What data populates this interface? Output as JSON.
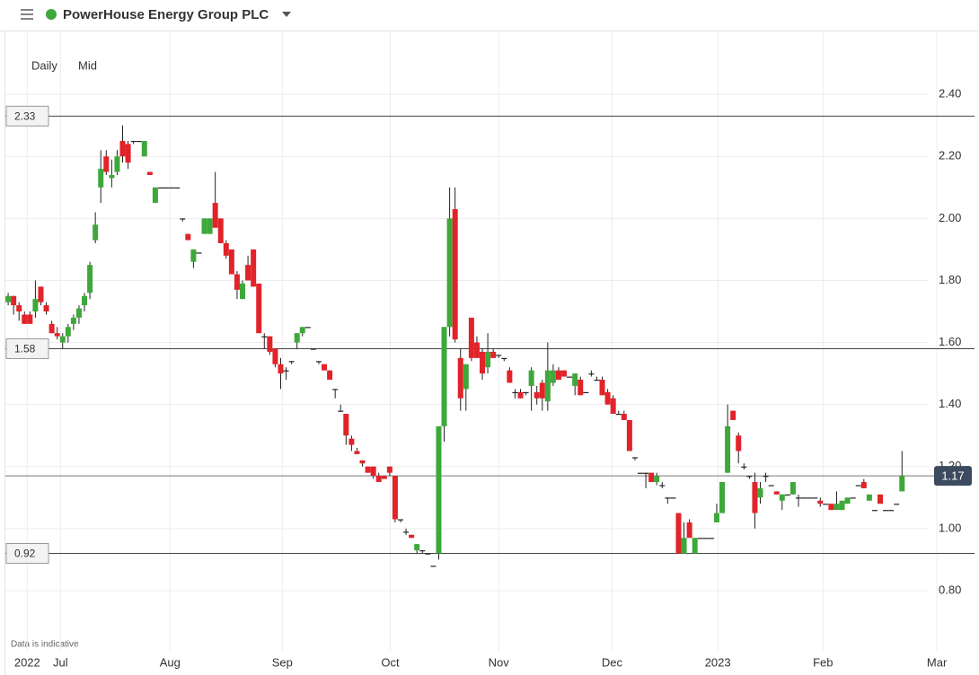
{
  "header": {
    "title": "PowerHouse Energy Group PLC"
  },
  "controls": [
    "Daily",
    "Mid"
  ],
  "note": "Data is indicative",
  "chart_data": {
    "type": "candlestick",
    "up_color": "#3ea83b",
    "down_color": "#e1232a",
    "grid": true,
    "xlim": [
      -1,
      177.3
    ],
    "ylim": [
      0.606,
      2.603
    ],
    "yticks": [
      {
        "value": 0.8,
        "label": "0.80"
      },
      {
        "value": 1.0,
        "label": "1.00"
      },
      {
        "value": 1.2,
        "label": "1.20"
      },
      {
        "value": 1.4,
        "label": "1.40"
      },
      {
        "value": 1.6,
        "label": "1.60"
      },
      {
        "value": 1.8,
        "label": "1.80"
      },
      {
        "value": 2.0,
        "label": "2.00"
      },
      {
        "value": 2.2,
        "label": "2.20"
      },
      {
        "value": 2.4,
        "label": "2.40"
      }
    ],
    "xticks": [
      {
        "value": 3.5,
        "label": "2022"
      },
      {
        "value": 9.6,
        "label": "Jul"
      },
      {
        "value": 29.7,
        "label": "Aug"
      },
      {
        "value": 50.3,
        "label": "Sep"
      },
      {
        "value": 70.1,
        "label": "Oct"
      },
      {
        "value": 90,
        "label": "Nov"
      },
      {
        "value": 110.8,
        "label": "Dec"
      },
      {
        "value": 130.2,
        "label": "2023"
      },
      {
        "value": 149.5,
        "label": "Feb"
      },
      {
        "value": 170.4,
        "label": "Mar"
      }
    ],
    "reference_lines": [
      2.33,
      1.58,
      0.92
    ],
    "last_price": 1.17,
    "candles": [
      [
        1.73,
        1.76,
        1.72,
        1.75
      ],
      [
        1.75,
        1.75,
        1.69,
        1.72
      ],
      [
        1.72,
        1.73,
        1.67,
        1.7
      ],
      [
        1.69,
        1.7,
        1.66,
        1.66
      ],
      [
        1.69,
        1.7,
        1.66,
        1.66
      ],
      [
        1.7,
        1.8,
        1.68,
        1.74
      ],
      [
        1.78,
        1.78,
        1.72,
        1.73
      ],
      [
        1.72,
        1.73,
        1.69,
        1.7
      ],
      [
        1.66,
        1.67,
        1.63,
        1.63
      ],
      [
        1.63,
        1.65,
        1.61,
        1.62
      ],
      [
        1.6,
        1.63,
        1.58,
        1.62
      ],
      [
        1.62,
        1.66,
        1.6,
        1.65
      ],
      [
        1.66,
        1.69,
        1.64,
        1.68
      ],
      [
        1.68,
        1.72,
        1.66,
        1.71
      ],
      [
        1.72,
        1.76,
        1.7,
        1.75
      ],
      [
        1.76,
        1.86,
        1.74,
        1.85
      ],
      [
        1.93,
        2.02,
        1.92,
        1.98
      ],
      [
        2.1,
        2.22,
        2.05,
        2.16
      ],
      [
        2.2,
        2.22,
        2.14,
        2.15
      ],
      [
        2.13,
        2.19,
        2.1,
        2.14
      ],
      [
        2.15,
        2.22,
        2.14,
        2.2
      ],
      [
        2.25,
        2.3,
        2.18,
        2.2
      ],
      [
        2.24,
        2.25,
        2.16,
        2.18
      ],
      [
        2.25,
        2.25,
        2.24,
        2.25
      ],
      [
        2.25,
        2.25,
        2.25,
        2.25
      ],
      [
        2.2,
        2.25,
        2.2,
        2.25
      ],
      [
        2.15,
        2.15,
        2.14,
        2.14
      ],
      [
        2.05,
        2.1,
        2.05,
        2.1
      ],
      [
        2.1,
        2.1,
        2.1,
        2.1
      ],
      [
        2.1,
        2.1,
        2.1,
        2.1
      ],
      [
        2.1,
        2.1,
        2.1,
        2.1
      ],
      [
        2.1,
        2.1,
        2.1,
        2.1
      ],
      [
        2.0,
        2.0,
        1.99,
        2.0
      ],
      [
        1.95,
        1.95,
        1.93,
        1.93
      ],
      [
        1.86,
        1.9,
        1.84,
        1.9
      ],
      [
        1.89,
        1.89,
        1.89,
        1.89
      ],
      [
        1.95,
        2.0,
        1.95,
        2.0
      ],
      [
        1.95,
        2.0,
        1.95,
        2.0
      ],
      [
        2.05,
        2.15,
        1.97,
        1.97
      ],
      [
        2.0,
        2.0,
        1.92,
        1.92
      ],
      [
        1.92,
        1.93,
        1.87,
        1.88
      ],
      [
        1.9,
        1.9,
        1.82,
        1.82
      ],
      [
        1.82,
        1.83,
        1.74,
        1.77
      ],
      [
        1.74,
        1.8,
        1.74,
        1.79
      ],
      [
        1.85,
        1.88,
        1.8,
        1.8
      ],
      [
        1.9,
        1.9,
        1.78,
        1.78
      ],
      [
        1.79,
        1.79,
        1.63,
        1.63
      ],
      [
        1.62,
        1.63,
        1.58,
        1.62
      ],
      [
        1.62,
        1.62,
        1.56,
        1.57
      ],
      [
        1.58,
        1.58,
        1.52,
        1.53
      ],
      [
        1.53,
        1.55,
        1.45,
        1.5
      ],
      [
        1.51,
        1.52,
        1.48,
        1.51
      ],
      [
        1.54,
        1.54,
        1.53,
        1.54
      ],
      [
        1.6,
        1.63,
        1.58,
        1.63
      ],
      [
        1.63,
        1.65,
        1.62,
        1.65
      ],
      [
        1.65,
        1.65,
        1.65,
        1.65
      ],
      [
        1.58,
        1.58,
        1.58,
        1.58
      ],
      [
        1.54,
        1.54,
        1.53,
        1.54
      ],
      [
        1.53,
        1.53,
        1.51,
        1.51
      ],
      [
        1.51,
        1.51,
        1.48,
        1.48
      ],
      [
        1.45,
        1.45,
        1.42,
        1.45
      ],
      [
        1.38,
        1.4,
        1.38,
        1.38
      ],
      [
        1.37,
        1.37,
        1.27,
        1.3
      ],
      [
        1.29,
        1.3,
        1.25,
        1.27
      ],
      [
        1.25,
        1.26,
        1.24,
        1.24
      ],
      [
        1.22,
        1.22,
        1.2,
        1.21
      ],
      [
        1.2,
        1.2,
        1.18,
        1.18
      ],
      [
        1.2,
        1.2,
        1.16,
        1.17
      ],
      [
        1.17,
        1.18,
        1.15,
        1.15
      ],
      [
        1.17,
        1.17,
        1.16,
        1.16
      ],
      [
        1.2,
        1.2,
        1.17,
        1.18
      ],
      [
        1.17,
        1.17,
        1.02,
        1.03
      ],
      [
        1.03,
        1.03,
        1.02,
        1.03
      ],
      [
        0.99,
        1.0,
        0.98,
        0.99
      ],
      [
        0.98,
        0.98,
        0.97,
        0.97
      ],
      [
        0.93,
        0.95,
        0.92,
        0.95
      ],
      [
        0.93,
        0.93,
        0.92,
        0.93
      ],
      [
        0.92,
        0.92,
        0.92,
        0.92
      ],
      [
        0.88,
        0.88,
        0.88,
        0.88
      ],
      [
        0.92,
        1.33,
        0.9,
        1.33
      ],
      [
        1.33,
        1.65,
        1.28,
        1.65
      ],
      [
        1.65,
        2.1,
        1.62,
        2.0
      ],
      [
        2.03,
        2.1,
        1.6,
        1.61
      ],
      [
        1.55,
        1.58,
        1.38,
        1.42
      ],
      [
        1.45,
        1.53,
        1.38,
        1.53
      ],
      [
        1.68,
        1.68,
        1.54,
        1.55
      ],
      [
        1.6,
        1.62,
        1.55,
        1.55
      ],
      [
        1.57,
        1.58,
        1.48,
        1.5
      ],
      [
        1.52,
        1.63,
        1.5,
        1.57
      ],
      [
        1.57,
        1.58,
        1.55,
        1.55
      ],
      [
        1.56,
        1.56,
        1.55,
        1.56
      ],
      [
        1.55,
        1.55,
        1.54,
        1.55
      ],
      [
        1.51,
        1.52,
        1.47,
        1.47
      ],
      [
        1.44,
        1.45,
        1.42,
        1.44
      ],
      [
        1.44,
        1.45,
        1.42,
        1.42
      ],
      [
        1.44,
        1.44,
        1.43,
        1.44
      ],
      [
        1.46,
        1.52,
        1.38,
        1.51
      ],
      [
        1.44,
        1.46,
        1.4,
        1.42
      ],
      [
        1.47,
        1.48,
        1.38,
        1.42
      ],
      [
        1.41,
        1.6,
        1.38,
        1.51
      ],
      [
        1.47,
        1.53,
        1.46,
        1.51
      ],
      [
        1.51,
        1.52,
        1.48,
        1.48
      ],
      [
        1.51,
        1.51,
        1.49,
        1.49
      ],
      [
        1.49,
        1.49,
        1.49,
        1.49
      ],
      [
        1.46,
        1.5,
        1.43,
        1.5
      ],
      [
        1.48,
        1.49,
        1.43,
        1.43
      ],
      [
        1.44,
        1.44,
        1.44,
        1.44
      ],
      [
        1.5,
        1.51,
        1.49,
        1.5
      ],
      [
        1.48,
        1.49,
        1.48,
        1.48
      ],
      [
        1.48,
        1.49,
        1.43,
        1.43
      ],
      [
        1.44,
        1.45,
        1.4,
        1.4
      ],
      [
        1.42,
        1.43,
        1.37,
        1.37
      ],
      [
        1.37,
        1.38,
        1.37,
        1.37
      ],
      [
        1.37,
        1.38,
        1.35,
        1.35
      ],
      [
        1.35,
        1.35,
        1.25,
        1.25
      ],
      [
        1.23,
        1.23,
        1.22,
        1.23
      ],
      [
        1.18,
        1.18,
        1.18,
        1.18
      ],
      [
        1.18,
        1.18,
        1.13,
        1.18
      ],
      [
        1.18,
        1.18,
        1.15,
        1.15
      ],
      [
        1.15,
        1.18,
        1.14,
        1.17
      ],
      [
        1.14,
        1.15,
        1.13,
        1.14
      ],
      [
        1.1,
        1.1,
        1.08,
        1.1
      ],
      [
        1.1,
        1.1,
        1.1,
        1.1
      ],
      [
        1.05,
        1.05,
        0.92,
        0.92
      ],
      [
        0.92,
        1.02,
        0.92,
        0.97
      ],
      [
        1.02,
        1.03,
        0.97,
        0.97
      ],
      [
        0.92,
        0.97,
        0.92,
        0.97
      ],
      [
        0.97,
        0.97,
        0.97,
        0.97
      ],
      [
        0.97,
        0.97,
        0.97,
        0.97
      ],
      [
        0.97,
        0.97,
        0.97,
        0.97
      ],
      [
        1.02,
        1.08,
        1.02,
        1.05
      ],
      [
        1.05,
        1.15,
        1.05,
        1.15
      ],
      [
        1.18,
        1.4,
        1.18,
        1.33
      ],
      [
        1.38,
        1.38,
        1.35,
        1.35
      ],
      [
        1.3,
        1.31,
        1.21,
        1.25
      ],
      [
        1.2,
        1.21,
        1.19,
        1.2
      ],
      [
        1.17,
        1.17,
        1.16,
        1.17
      ],
      [
        1.15,
        1.18,
        1.0,
        1.05
      ],
      [
        1.1,
        1.15,
        1.08,
        1.13
      ],
      [
        1.17,
        1.18,
        1.15,
        1.17
      ],
      [
        1.14,
        1.14,
        1.14,
        1.14
      ],
      [
        1.12,
        1.12,
        1.11,
        1.11
      ],
      [
        1.09,
        1.11,
        1.06,
        1.11
      ],
      [
        1.11,
        1.11,
        1.11,
        1.11
      ],
      [
        1.11,
        1.15,
        1.11,
        1.15
      ],
      [
        1.1,
        1.11,
        1.07,
        1.1
      ],
      [
        1.1,
        1.1,
        1.1,
        1.1
      ],
      [
        1.1,
        1.1,
        1.1,
        1.1
      ],
      [
        1.1,
        1.1,
        1.1,
        1.1
      ],
      [
        1.09,
        1.1,
        1.07,
        1.08
      ],
      [
        1.08,
        1.08,
        1.08,
        1.08
      ],
      [
        1.08,
        1.08,
        1.06,
        1.06
      ],
      [
        1.06,
        1.12,
        1.06,
        1.08
      ],
      [
        1.06,
        1.09,
        1.06,
        1.09
      ],
      [
        1.08,
        1.1,
        1.08,
        1.1
      ],
      [
        1.1,
        1.1,
        1.1,
        1.1
      ],
      [
        1.14,
        1.14,
        1.14,
        1.14
      ],
      [
        1.15,
        1.16,
        1.13,
        1.13
      ],
      [
        1.09,
        1.11,
        1.09,
        1.11
      ],
      [
        1.06,
        1.06,
        1.06,
        1.06
      ],
      [
        1.11,
        1.11,
        1.08,
        1.08
      ],
      [
        1.06,
        1.06,
        1.06,
        1.06
      ],
      [
        1.06,
        1.06,
        1.06,
        1.06
      ],
      [
        1.08,
        1.08,
        1.08,
        1.08
      ],
      [
        1.12,
        1.25,
        1.12,
        1.17
      ]
    ]
  }
}
